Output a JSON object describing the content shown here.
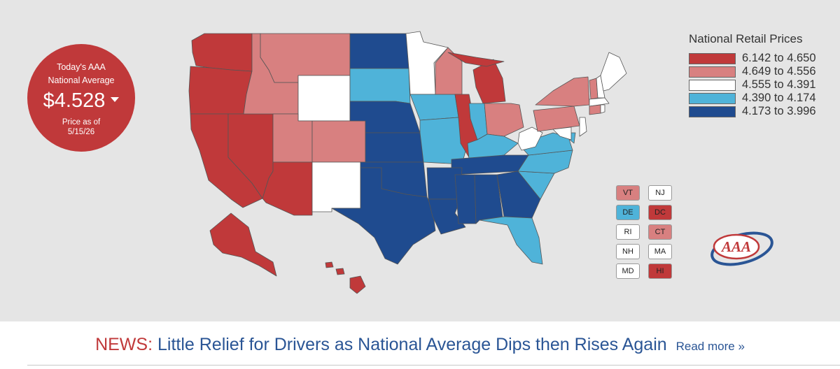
{
  "badge": {
    "line1": "Today's AAA",
    "line2": "National Average",
    "price": "$4.528",
    "as_of_label": "Price as of",
    "as_of_date": "5/15/26"
  },
  "legend": {
    "title": "National Retail Prices",
    "items": [
      {
        "label": "6.142 to 4.650",
        "color": "#c0393a"
      },
      {
        "label": "4.649 to 4.556",
        "color": "#d88080"
      },
      {
        "label": "4.555 to 4.391",
        "color": "#ffffff"
      },
      {
        "label": "4.390 to 4.174",
        "color": "#4fb3d9"
      },
      {
        "label": "4.173 to 3.996",
        "color": "#1f4b8f"
      }
    ]
  },
  "small_states": [
    {
      "abbr": "VT",
      "color": "#d88080"
    },
    {
      "abbr": "NJ",
      "color": "#ffffff"
    },
    {
      "abbr": "DE",
      "color": "#4fb3d9"
    },
    {
      "abbr": "DC",
      "color": "#c0393a"
    },
    {
      "abbr": "RI",
      "color": "#ffffff"
    },
    {
      "abbr": "CT",
      "color": "#d88080"
    },
    {
      "abbr": "NH",
      "color": "#ffffff"
    },
    {
      "abbr": "MA",
      "color": "#ffffff"
    },
    {
      "abbr": "MD",
      "color": "#ffffff"
    },
    {
      "abbr": "HI",
      "color": "#c0393a"
    }
  ],
  "logo": {
    "text": "AAA"
  },
  "news": {
    "label": "NEWS:",
    "headline": "Little Relief for Drivers as National Average Dips then Rises Again",
    "read_more": "Read more »"
  },
  "colors": {
    "tier1": "#c0393a",
    "tier2": "#d88080",
    "tier3": "#ffffff",
    "tier4": "#4fb3d9",
    "tier5": "#1f4b8f",
    "border": "#555555"
  }
}
